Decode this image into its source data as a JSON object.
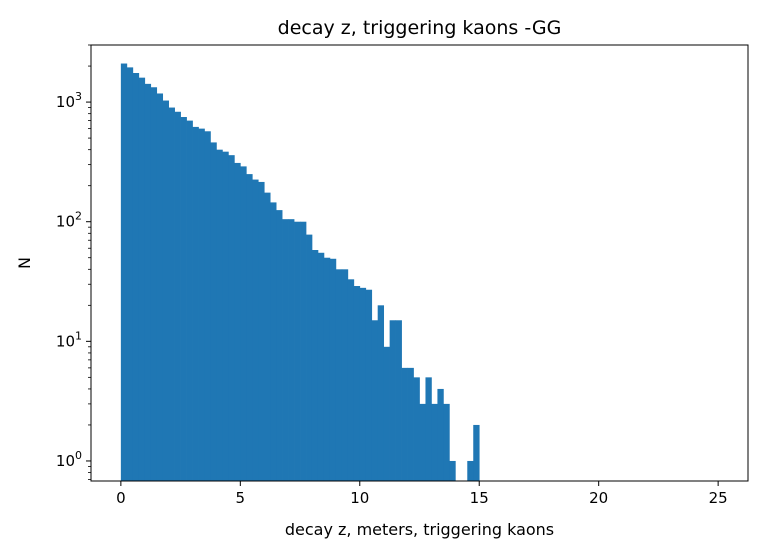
{
  "chart_data": {
    "type": "bar",
    "subtype": "histogram",
    "title": "decay z, triggering kaons -GG",
    "xlabel": "decay z, meters, triggering kaons",
    "ylabel": "N",
    "xlim": [
      -1.25,
      26.25
    ],
    "ylim": [
      0.68,
      3000
    ],
    "yscale": "log",
    "grid": false,
    "bar_color": "#1f77b4",
    "bin_width": 0.25,
    "x_ticks": [
      {
        "value": 0,
        "label": "0"
      },
      {
        "value": 5,
        "label": "5"
      },
      {
        "value": 10,
        "label": "10"
      },
      {
        "value": 15,
        "label": "15"
      },
      {
        "value": 20,
        "label": "20"
      },
      {
        "value": 25,
        "label": "25"
      }
    ],
    "y_ticks": [
      {
        "value": 1,
        "base": "10",
        "exp": "0"
      },
      {
        "value": 10,
        "base": "10",
        "exp": "1"
      },
      {
        "value": 100,
        "base": "10",
        "exp": "2"
      },
      {
        "value": 1000,
        "base": "10",
        "exp": "3"
      }
    ],
    "bin_starts": [
      0.0,
      0.25,
      0.5,
      0.75,
      1.0,
      1.25,
      1.5,
      1.75,
      2.0,
      2.25,
      2.5,
      2.75,
      3.0,
      3.25,
      3.5,
      3.75,
      4.0,
      4.25,
      4.5,
      4.75,
      5.0,
      5.25,
      5.5,
      5.75,
      6.0,
      6.25,
      6.5,
      6.75,
      7.0,
      7.25,
      7.5,
      7.75,
      8.0,
      8.25,
      8.5,
      8.75,
      9.0,
      9.25,
      9.5,
      9.75,
      10.0,
      10.25,
      10.5,
      10.75,
      11.0,
      11.25,
      11.5,
      11.75,
      12.0,
      12.25,
      12.5,
      12.75,
      13.0,
      13.25,
      13.5,
      13.75,
      14.0,
      14.25,
      14.5,
      14.75,
      15.0
    ],
    "counts": [
      2100,
      1950,
      1750,
      1600,
      1420,
      1330,
      1180,
      1030,
      900,
      830,
      750,
      700,
      620,
      600,
      570,
      460,
      400,
      385,
      360,
      310,
      290,
      250,
      225,
      215,
      175,
      145,
      125,
      105,
      105,
      100,
      100,
      78,
      58,
      55,
      50,
      49,
      40,
      40,
      33,
      29,
      28,
      27,
      15,
      20,
      9,
      15,
      15,
      6,
      6,
      5,
      3,
      5,
      3,
      4,
      3,
      1,
      0,
      0,
      1,
      2,
      0
    ]
  }
}
